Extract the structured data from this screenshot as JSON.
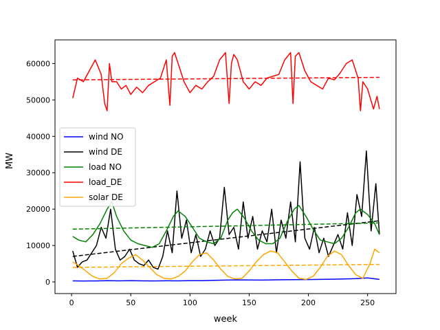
{
  "chart_data": {
    "type": "line",
    "xlabel": "week",
    "ylabel": "MW",
    "xlim": [
      -14,
      274
    ],
    "ylim": [
      -3200,
      66500
    ],
    "xticks": [
      0,
      50,
      100,
      150,
      200,
      250
    ],
    "xtick_labels": [
      "0",
      "50",
      "100",
      "150",
      "200",
      "250"
    ],
    "yticks": [
      0,
      10000,
      20000,
      30000,
      40000,
      50000,
      60000
    ],
    "ytick_labels": [
      "0",
      "10000",
      "20000",
      "30000",
      "40000",
      "50000",
      "60000"
    ],
    "grid": false,
    "legend_position": "center-left",
    "series": [
      {
        "name": "wind NO",
        "color": "#0000ff",
        "x": [
          1,
          10,
          20,
          30,
          40,
          50,
          60,
          70,
          80,
          90,
          100,
          110,
          120,
          130,
          140,
          150,
          160,
          170,
          180,
          190,
          200,
          210,
          220,
          230,
          240,
          250,
          260
        ],
        "y": [
          300,
          250,
          280,
          350,
          300,
          330,
          300,
          280,
          310,
          300,
          330,
          350,
          450,
          500,
          560,
          520,
          500,
          560,
          600,
          620,
          650,
          700,
          750,
          800,
          900,
          1100,
          700
        ]
      },
      {
        "name": "wind DE",
        "color": "#000000",
        "x": [
          1,
          5,
          9,
          13,
          17,
          21,
          25,
          29,
          33,
          37,
          41,
          45,
          49,
          53,
          57,
          61,
          65,
          69,
          73,
          77,
          81,
          85,
          89,
          93,
          97,
          101,
          105,
          109,
          113,
          117,
          121,
          125,
          129,
          133,
          137,
          141,
          145,
          149,
          153,
          157,
          161,
          165,
          169,
          173,
          177,
          181,
          185,
          189,
          193,
          197,
          201,
          205,
          209,
          213,
          217,
          221,
          225,
          229,
          233,
          237,
          241,
          245,
          249,
          253,
          257,
          260
        ],
        "y": [
          8500,
          4000,
          5500,
          6000,
          8000,
          10000,
          15000,
          12000,
          20000,
          9000,
          6000,
          7000,
          9000,
          6000,
          5000,
          4500,
          6000,
          4000,
          3500,
          7000,
          14000,
          8000,
          25000,
          12000,
          17000,
          8000,
          13000,
          7000,
          9000,
          14000,
          10000,
          12000,
          26000,
          13000,
          15000,
          9000,
          22000,
          12000,
          18000,
          9000,
          14000,
          11000,
          20000,
          8000,
          17000,
          12000,
          22000,
          11000,
          33000,
          12000,
          9000,
          15000,
          8000,
          12000,
          7000,
          10000,
          13000,
          9000,
          19000,
          10000,
          24000,
          18000,
          36000,
          14000,
          27000,
          13000
        ]
      },
      {
        "name": "wind DE trend",
        "color": "#000000",
        "style": "dashed",
        "x": [
          1,
          260
        ],
        "y": [
          7000,
          16800
        ]
      },
      {
        "name": "load NO",
        "color": "#008000",
        "x": [
          1,
          6,
          12,
          18,
          24,
          30,
          34,
          38,
          44,
          50,
          56,
          62,
          68,
          74,
          80,
          86,
          90,
          96,
          102,
          108,
          114,
          120,
          126,
          132,
          136,
          140,
          146,
          152,
          158,
          164,
          170,
          176,
          182,
          188,
          192,
          198,
          204,
          210,
          216,
          222,
          228,
          234,
          240,
          244,
          250,
          256,
          260
        ],
        "y": [
          12500,
          11500,
          11000,
          13000,
          16000,
          20000,
          22000,
          18000,
          14000,
          11500,
          10500,
          10000,
          9500,
          10500,
          14000,
          18000,
          19500,
          18000,
          15000,
          12000,
          11000,
          10500,
          12000,
          17000,
          19000,
          20000,
          17500,
          14000,
          11500,
          10500,
          10500,
          12000,
          16500,
          20000,
          21000,
          18000,
          14500,
          11500,
          11000,
          10500,
          12000,
          15000,
          19000,
          20000,
          18500,
          16000,
          13000
        ]
      },
      {
        "name": "load NO trend",
        "color": "#008000",
        "style": "dashed",
        "x": [
          1,
          260
        ],
        "y": [
          14500,
          16200
        ]
      },
      {
        "name": "load_DE",
        "color": "#ff0000",
        "x": [
          1,
          5,
          10,
          15,
          20,
          25,
          28,
          30,
          32,
          34,
          38,
          42,
          46,
          50,
          55,
          60,
          65,
          70,
          75,
          80,
          83,
          85,
          87,
          90,
          95,
          100,
          105,
          110,
          115,
          120,
          125,
          130,
          133,
          135,
          137,
          140,
          145,
          150,
          155,
          160,
          165,
          170,
          175,
          180,
          185,
          187,
          189,
          192,
          197,
          202,
          207,
          212,
          217,
          222,
          227,
          232,
          237,
          242,
          244,
          246,
          250,
          255,
          258,
          260
        ],
        "y": [
          50500,
          56000,
          55000,
          58000,
          61000,
          57000,
          49000,
          47000,
          60000,
          55000,
          55000,
          53000,
          54000,
          51500,
          53500,
          52000,
          54000,
          55000,
          56000,
          61000,
          48500,
          62000,
          63000,
          60000,
          55000,
          52000,
          54000,
          53000,
          55000,
          56500,
          61000,
          63000,
          49000,
          60000,
          62500,
          61000,
          55000,
          53000,
          55000,
          54000,
          56000,
          56500,
          57000,
          61000,
          63000,
          49000,
          62000,
          63000,
          58000,
          55000,
          54000,
          53000,
          56000,
          55500,
          57500,
          60000,
          61000,
          56000,
          47000,
          55000,
          53000,
          47500,
          51000,
          47500
        ]
      },
      {
        "name": "load_DE trend",
        "color": "#ff0000",
        "style": "dashed",
        "x": [
          1,
          260
        ],
        "y": [
          55500,
          56200
        ]
      },
      {
        "name": "solar DE",
        "color": "#ffa500",
        "x": [
          1,
          6,
          12,
          18,
          24,
          30,
          36,
          42,
          48,
          54,
          60,
          66,
          72,
          78,
          84,
          90,
          96,
          102,
          108,
          114,
          120,
          126,
          132,
          138,
          144,
          150,
          156,
          162,
          168,
          174,
          180,
          186,
          192,
          198,
          204,
          210,
          216,
          222,
          228,
          234,
          240,
          246,
          252,
          256,
          260
        ],
        "y": [
          5500,
          4500,
          3000,
          1500,
          800,
          1000,
          2500,
          5000,
          6500,
          7500,
          6000,
          4000,
          2000,
          1000,
          800,
          1500,
          3000,
          5500,
          7500,
          8000,
          6000,
          3500,
          1500,
          800,
          1000,
          3000,
          5500,
          7500,
          8500,
          8000,
          5500,
          3000,
          1000,
          700,
          1500,
          4000,
          7000,
          8500,
          7500,
          4500,
          2000,
          1000,
          5000,
          9000,
          8000
        ]
      },
      {
        "name": "solar DE trend",
        "color": "#ffa500",
        "style": "dashed",
        "x": [
          1,
          260
        ],
        "y": [
          4000,
          4800
        ]
      }
    ],
    "legend": [
      {
        "label": "wind NO",
        "color": "#0000ff"
      },
      {
        "label": "wind DE",
        "color": "#000000"
      },
      {
        "label": "load NO",
        "color": "#008000"
      },
      {
        "label": "load_DE",
        "color": "#ff0000"
      },
      {
        "label": "solar DE",
        "color": "#ffa500"
      }
    ]
  }
}
